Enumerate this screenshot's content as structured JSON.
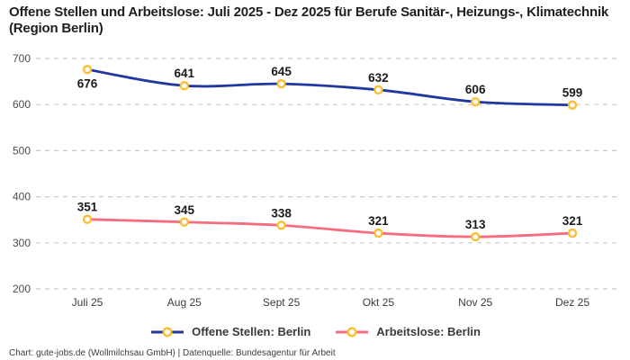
{
  "title": "Offene Stellen und Arbeitslose: Juli 2025 - Dez 2025 für Berufe Sanitär-, Heizungs-, Klimatechnik (Region Berlin)",
  "footer": "Chart: gute-jobs.de (Wollmilchsau GmbH) | Datenquelle: Bundesagentur für Arbeit",
  "colors": {
    "open_positions_line": "#22389f",
    "unemployed_line": "#f76c80",
    "marker_ring": "#fbbd2c",
    "gridline": "#cbcbcb"
  },
  "chart_data": {
    "type": "line",
    "title": "Offene Stellen und Arbeitslose: Juli 2025 - Dez 2025 für Berufe Sanitär-, Heizungs-, Klimatechnik (Region Berlin)",
    "categories": [
      "Juli 25",
      "Aug 25",
      "Sept 25",
      "Okt 25",
      "Nov 25",
      "Dez 25"
    ],
    "series": [
      {
        "name": "Offene Stellen: Berlin",
        "color": "#22389f",
        "values": [
          676,
          641,
          645,
          632,
          606,
          599
        ],
        "label_sides": [
          "below",
          "above",
          "above",
          "above",
          "above",
          "above"
        ]
      },
      {
        "name": "Arbeitslose: Berlin",
        "color": "#f76c80",
        "values": [
          351,
          345,
          338,
          321,
          313,
          321
        ],
        "label_sides": [
          "above",
          "above",
          "above",
          "above",
          "above",
          "above"
        ]
      }
    ],
    "marker_color": "#fbbd2c",
    "ylim": [
      200,
      700
    ],
    "yticks": [
      200,
      300,
      400,
      500,
      600,
      700
    ],
    "grid": "horizontal-dashed",
    "data_labels": true,
    "legend_position": "bottom"
  }
}
